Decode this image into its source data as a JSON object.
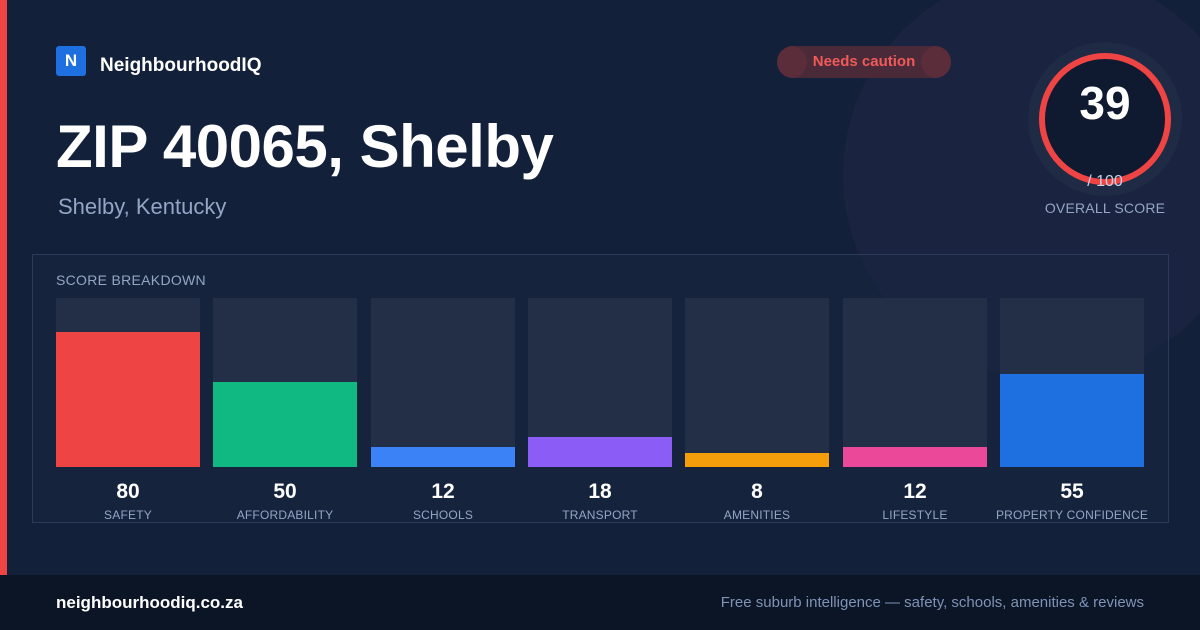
{
  "brand": {
    "logo_letter": "N",
    "name": "NeighbourhoodIQ"
  },
  "badge": {
    "text": "Needs caution"
  },
  "title": "ZIP 40065, Shelby",
  "subtitle": "Shelby, Kentucky",
  "overall": {
    "score": "39",
    "max": "/ 100",
    "label": "OVERALL SCORE",
    "fraction": 0.39,
    "ring_color": "#ef4444"
  },
  "breakdown": {
    "title": "SCORE BREAKDOWN",
    "items": [
      {
        "label": "SAFETY",
        "value": "80",
        "color": "#ef4444"
      },
      {
        "label": "AFFORDABILITY",
        "value": "50",
        "color": "#10b981"
      },
      {
        "label": "SCHOOLS",
        "value": "12",
        "color": "#3b82f6"
      },
      {
        "label": "TRANSPORT",
        "value": "18",
        "color": "#8b5cf6"
      },
      {
        "label": "AMENITIES",
        "value": "8",
        "color": "#f59e0b"
      },
      {
        "label": "LIFESTYLE",
        "value": "12",
        "color": "#ec4899"
      },
      {
        "label": "PROPERTY CONFIDENCE",
        "value": "55",
        "color": "#1e6fe0"
      }
    ]
  },
  "footer": {
    "url": "neighbourhoodiq.co.za",
    "tagline": "Free suburb intelligence — safety, schools, amenities & reviews"
  }
}
